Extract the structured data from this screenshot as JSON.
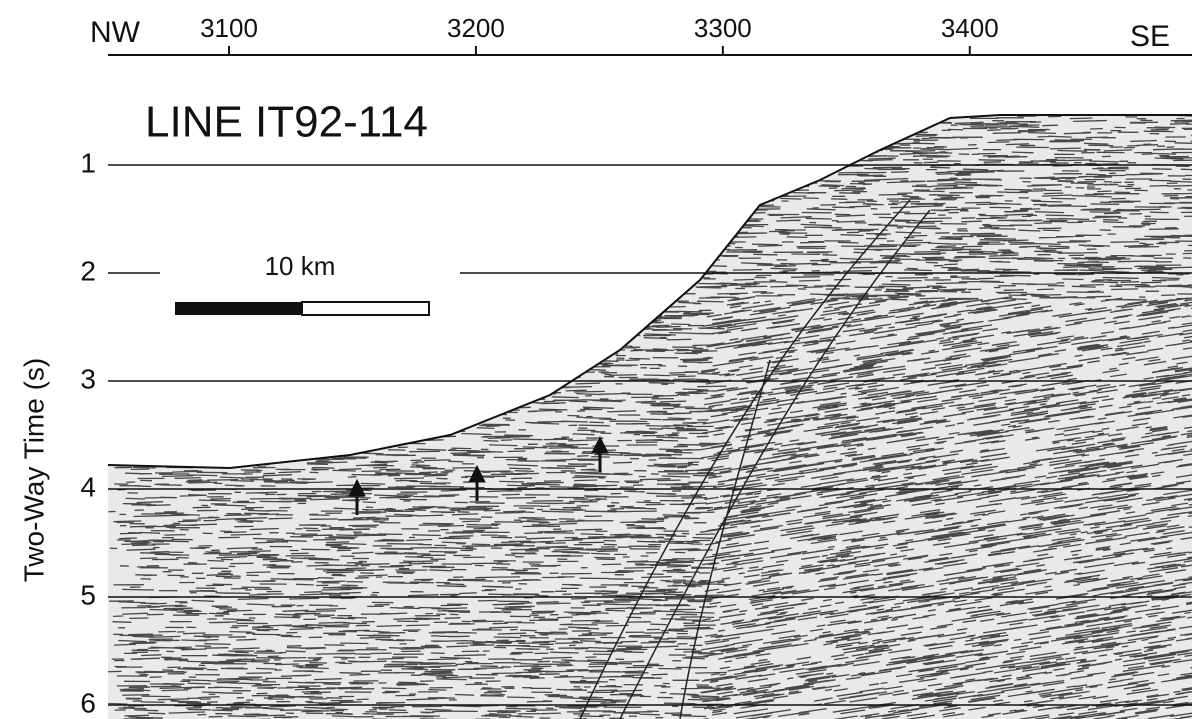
{
  "chart_data": {
    "type": "seismic-section",
    "title": "LINE IT92-114",
    "left_label": "NW",
    "right_label": "SE",
    "scale_label": "10 km",
    "ylabel": "Two-Way Time (s)",
    "xlim": [
      3051,
      3490
    ],
    "xticks": [
      3100,
      3200,
      3300,
      3400
    ],
    "ylim": [
      0,
      6
    ],
    "yticks": [
      1,
      2,
      3,
      4,
      5,
      6
    ],
    "grid": true,
    "color": "#111111"
  }
}
